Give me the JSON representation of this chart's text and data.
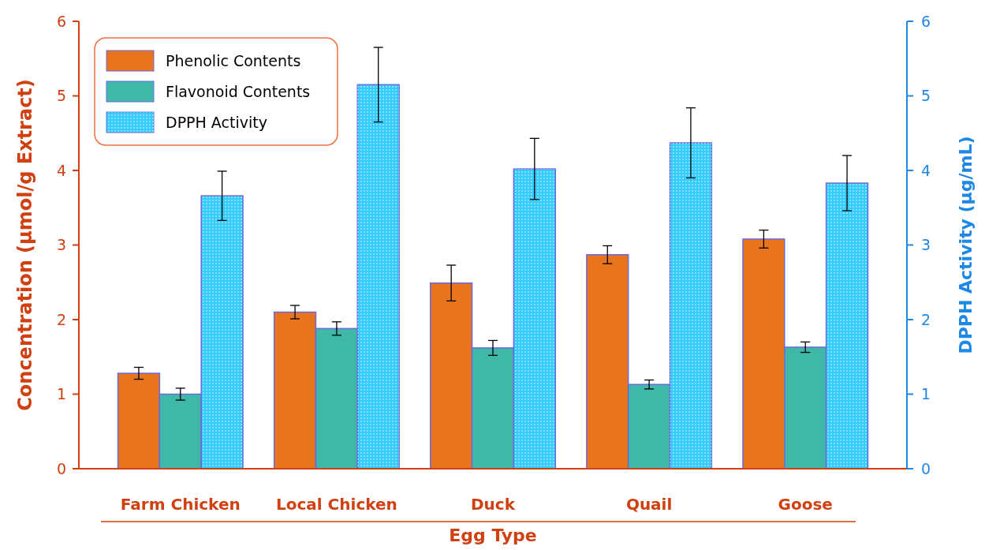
{
  "chart_data": {
    "type": "bar",
    "xlabel": "Egg Type",
    "ylabel": "Concentration (μmol/g Extract)",
    "y2label": "DPPH Activity (μg/mL)",
    "categories": [
      "Farm Chicken",
      "Local Chicken",
      "Duck",
      "Quail",
      "Goose"
    ],
    "series": [
      {
        "name": "Phenolic Contents",
        "color": "#e8741e",
        "values": [
          1.28,
          2.1,
          2.49,
          2.87,
          3.08
        ],
        "errors": [
          0.08,
          0.09,
          0.24,
          0.12,
          0.12
        ]
      },
      {
        "name": "Flavonoid Contents",
        "color": "#3fb8a8",
        "values": [
          1.0,
          1.88,
          1.62,
          1.13,
          1.63
        ],
        "errors": [
          0.08,
          0.09,
          0.1,
          0.06,
          0.07
        ]
      },
      {
        "name": "DPPH Activity",
        "color": "#33ccff",
        "axis": "y2",
        "values": [
          3.66,
          5.15,
          4.02,
          4.37,
          3.83
        ],
        "errors": [
          0.33,
          0.5,
          0.41,
          0.47,
          0.37
        ]
      }
    ],
    "ylim": [
      0,
      6
    ],
    "yticks": [
      0,
      1,
      2,
      3,
      4,
      5,
      6
    ],
    "y2lim": [
      0,
      6
    ],
    "y2ticks": [
      0,
      1,
      2,
      3,
      4,
      5,
      6
    ],
    "grid": false,
    "legend": "top left"
  }
}
